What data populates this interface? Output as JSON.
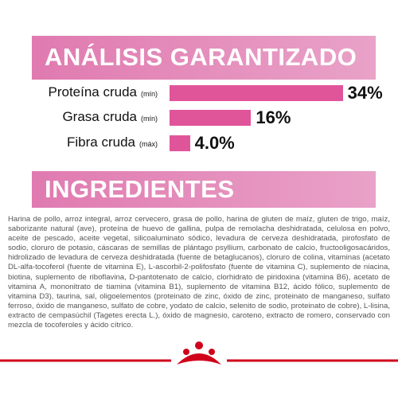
{
  "analysis": {
    "title": "ANÁLISIS GARANTIZADO",
    "items": [
      {
        "name": "Proteína cruda",
        "qualifier": "(mín)",
        "value": 34,
        "value_label": "34%"
      },
      {
        "name": "Grasa cruda",
        "qualifier": "(mín)",
        "value": 16,
        "value_label": "16%"
      },
      {
        "name": "Fibra cruda",
        "qualifier": "(máx)",
        "value": 4,
        "value_label": "4.0%"
      }
    ]
  },
  "ingredients": {
    "title": "INGREDIENTES",
    "text": "Harina de pollo, arroz integral, arroz cervecero, grasa de pollo, harina de gluten de maíz, gluten de trigo, maíz, saborizante natural (ave), proteína de huevo de gallina, pulpa de remolacha deshidratada, celulosa en polvo, aceite de pescado, aceite vegetal, silicoaluminato sódico, levadura de cerveza deshidratada, pirofosfato de sodio, cloruro de potasio, cáscaras de semillas de plántago psyllium, carbonato de calcio, fructooligosacáridos, hidrolizado de levadura de cerveza deshidratada (fuente de betaglucanos), cloruro de colina, vitaminas (acetato DL-alfa-tocoferol (fuente de vitamina E), L-ascorbil-2-polifosfato (fuente de vitamina C), suplemento de niacina, biotina, suplemento de riboflavina, D-pantotenato de calcio, clorhidrato de piridoxina (vitamina B6), acetato de vitamina A, mononitrato de tiamina (vitamina B1), suplemento de vitamina B12, ácido fólico, suplemento de vitamina D3), taurina, sal, oligoelementos (proteinato de zinc, óxido de zinc, proteinato de manganeso, sulfato ferroso, óxido de manganeso, sulfato de cobre, yodato de calcio, selenito de sodio, proteinato de cobre), L-lisina, extracto de cempasúchil (Tagetes erecta L.), óxido de magnesio, caroteno, extracto de romero, conservado con mezcla de tocoferoles y ácido cítrico."
  }
}
